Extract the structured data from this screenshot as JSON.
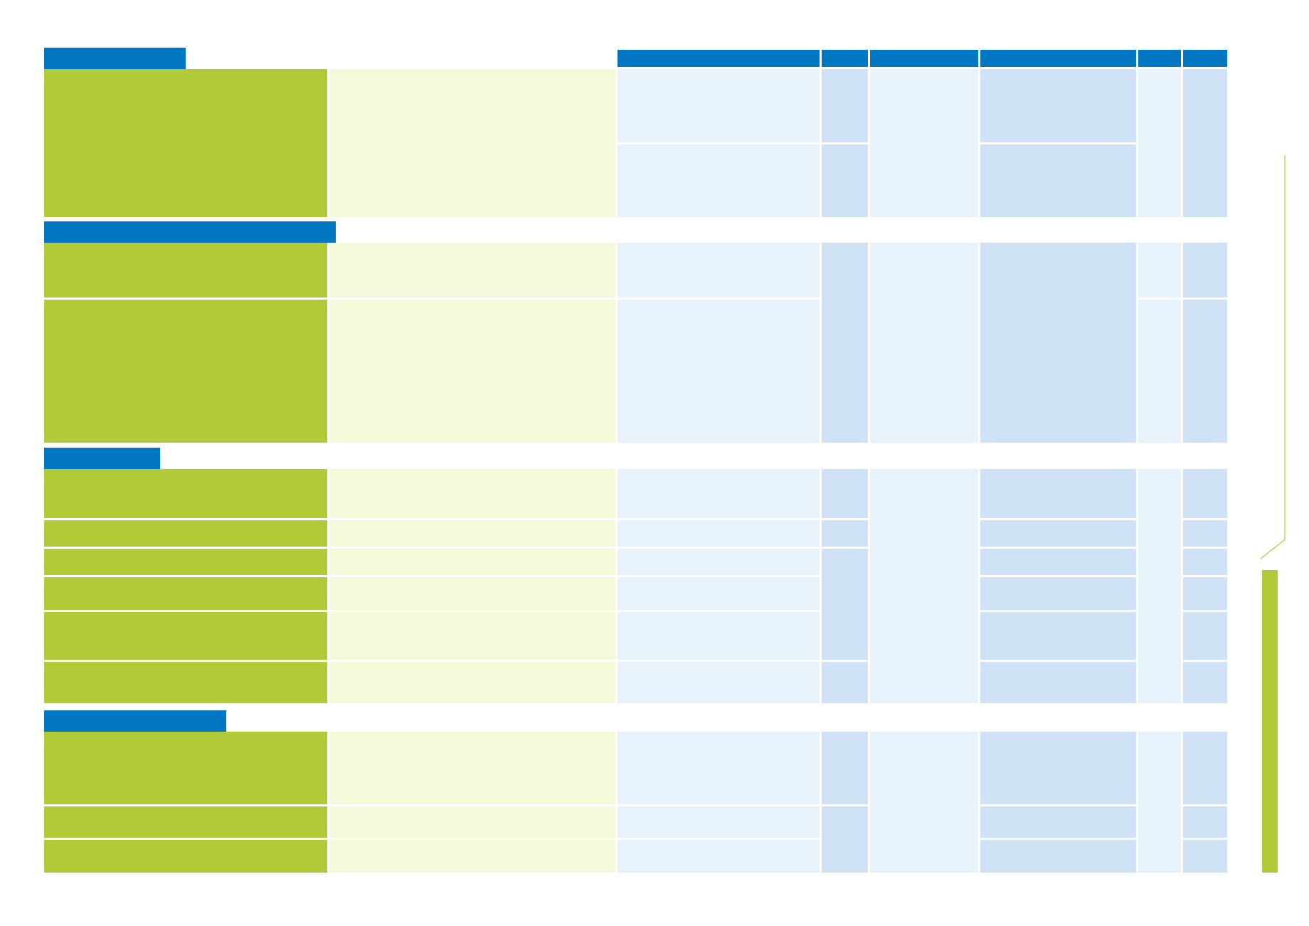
{
  "colors": {
    "header_blue": "#0077c0",
    "green": "#b1ca37",
    "green_light": "#f4f9d9",
    "blue_light": "#e8f2fb",
    "blue_mid": "#cfe1f4"
  },
  "sections": [
    {
      "title": ""
    },
    {
      "title": ""
    },
    {
      "title": ""
    },
    {
      "title": ""
    }
  ],
  "column_headers": [
    "",
    "",
    "",
    "",
    "",
    ""
  ]
}
